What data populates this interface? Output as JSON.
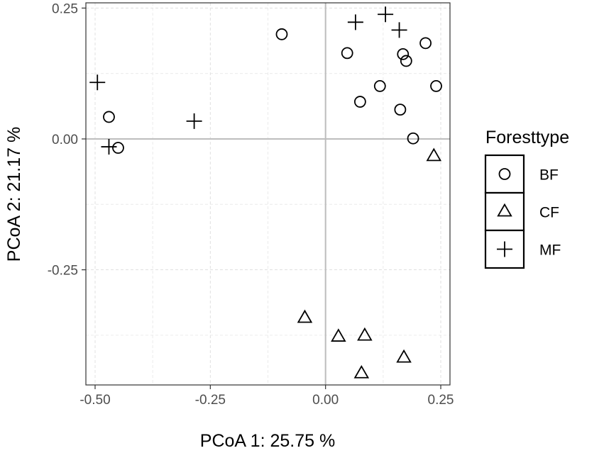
{
  "chart_data": {
    "type": "scatter",
    "title": "",
    "xlabel": "PCoA 1:  25.75 %",
    "ylabel": "PCoA 2:  21.17 %",
    "xlim": [
      -0.52,
      0.27
    ],
    "ylim": [
      -0.47,
      0.26
    ],
    "x_ticks": [
      -0.5,
      -0.25,
      0.0,
      0.25
    ],
    "x_tick_labels": [
      "-0.50",
      "-0.25",
      "0.00",
      "0.25"
    ],
    "y_ticks": [
      0.25,
      0.0,
      -0.25
    ],
    "y_tick_labels": [
      "0.25",
      "0.00",
      "-0.25"
    ],
    "grid": true,
    "zero_lines": true,
    "legend": {
      "title": "Foresttype",
      "placement": "right",
      "entries": [
        {
          "label": "BF",
          "shape": "circle"
        },
        {
          "label": "CF",
          "shape": "triangle"
        },
        {
          "label": "MF",
          "shape": "plus"
        }
      ]
    },
    "series": [
      {
        "name": "BF",
        "shape": "circle",
        "points": [
          [
            -0.47,
            0.042
          ],
          [
            -0.45,
            -0.017
          ],
          [
            -0.095,
            0.2
          ],
          [
            0.047,
            0.164
          ],
          [
            0.075,
            0.071
          ],
          [
            0.118,
            0.101
          ],
          [
            0.162,
            0.056
          ],
          [
            0.168,
            0.162
          ],
          [
            0.175,
            0.149
          ],
          [
            0.19,
            0.001
          ],
          [
            0.217,
            0.183
          ],
          [
            0.24,
            0.101
          ]
        ]
      },
      {
        "name": "CF",
        "shape": "triangle",
        "points": [
          [
            -0.045,
            -0.342
          ],
          [
            0.028,
            -0.378
          ],
          [
            0.085,
            -0.376
          ],
          [
            0.078,
            -0.448
          ],
          [
            0.17,
            -0.418
          ],
          [
            0.235,
            -0.033
          ]
        ]
      },
      {
        "name": "MF",
        "shape": "plus",
        "points": [
          [
            -0.495,
            0.108
          ],
          [
            -0.47,
            -0.015
          ],
          [
            -0.285,
            0.034
          ],
          [
            0.065,
            0.223
          ],
          [
            0.13,
            0.238
          ],
          [
            0.16,
            0.208
          ]
        ]
      }
    ]
  }
}
